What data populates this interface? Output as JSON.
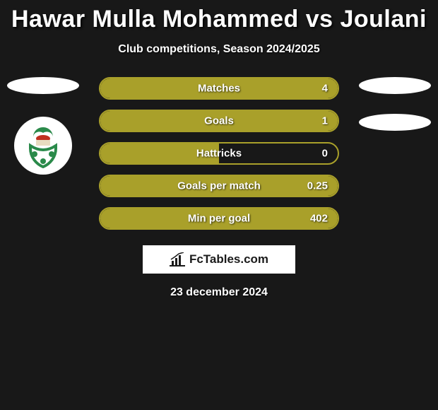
{
  "title": "Hawar Mulla Mohammed vs Joulani",
  "subtitle": "Club competitions, Season 2024/2025",
  "date": "23 december 2024",
  "branding_text": "FcTables.com",
  "colors": {
    "background": "#181818",
    "bar_border": "#a9a02a",
    "bar_fill": "#a9a02a",
    "text": "#ffffff",
    "branding_bg": "#ffffff",
    "branding_text": "#1a1a1a"
  },
  "stats": [
    {
      "label": "Matches",
      "value": "4",
      "fill_pct": 100
    },
    {
      "label": "Goals",
      "value": "1",
      "fill_pct": 100
    },
    {
      "label": "Hattricks",
      "value": "0",
      "fill_pct": 50
    },
    {
      "label": "Goals per match",
      "value": "0.25",
      "fill_pct": 100
    },
    {
      "label": "Min per goal",
      "value": "402",
      "fill_pct": 100
    }
  ],
  "logo_colors": {
    "leaf": "#2a8a4a",
    "accent": "#c03020",
    "book": "#e8dcc0"
  }
}
